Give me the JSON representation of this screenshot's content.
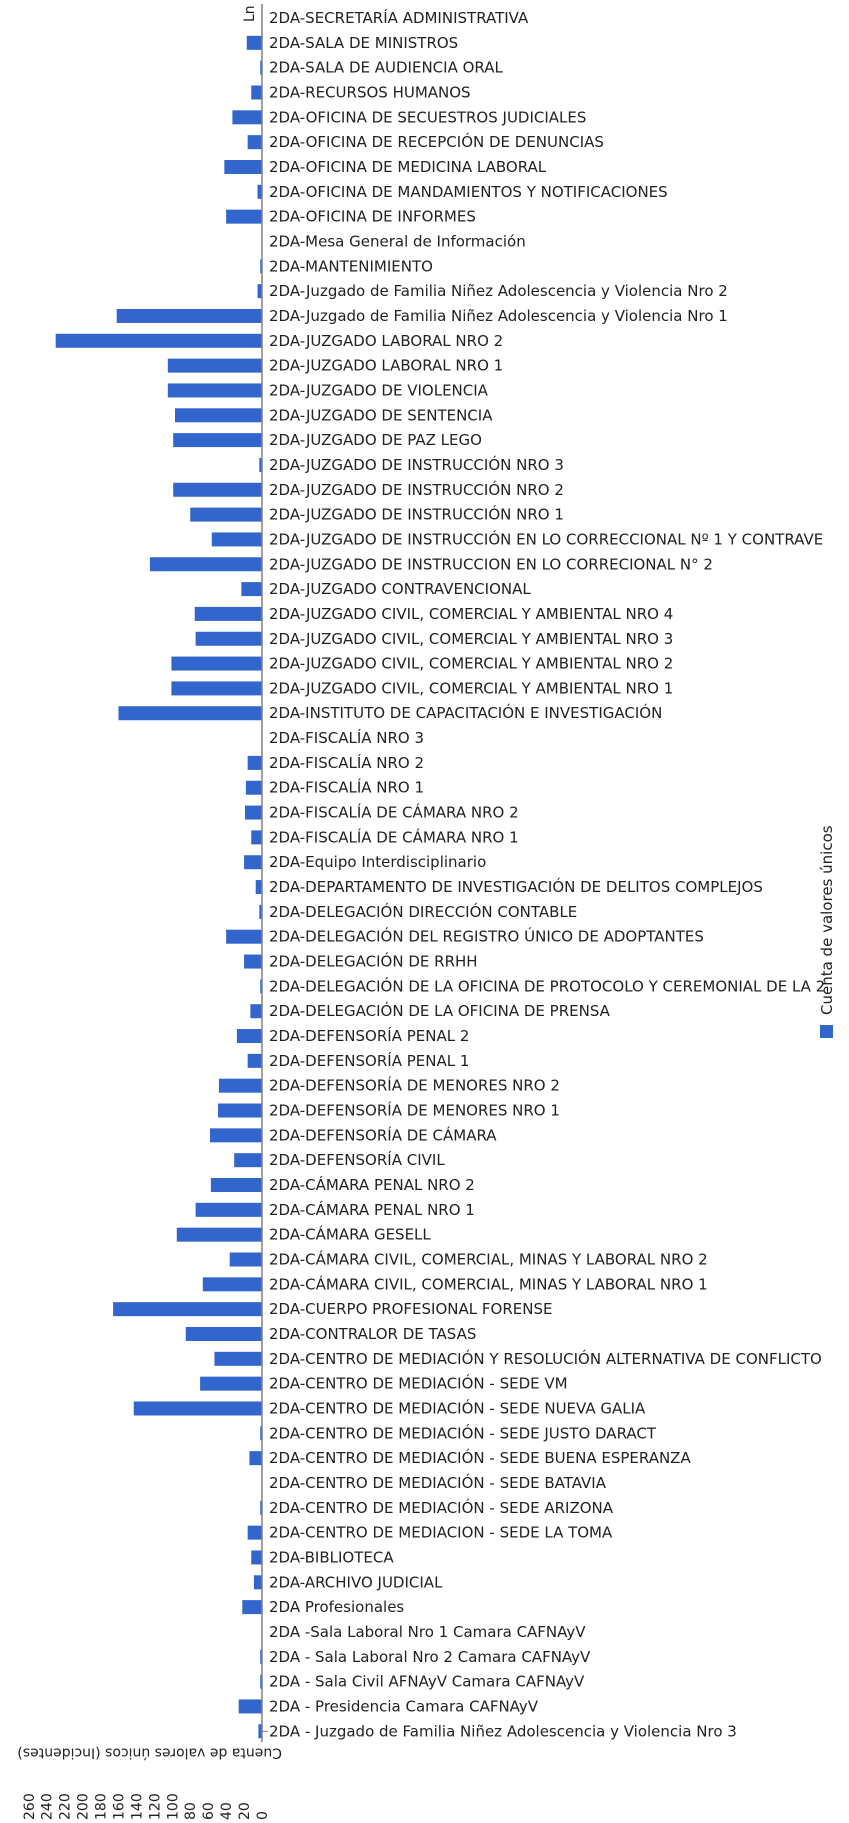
{
  "header_clip": "Ln",
  "colors": {
    "bar": "#3366cc",
    "axis": "#808080",
    "text": "#222222"
  },
  "chart_data": {
    "type": "bar",
    "orientation": "horizontal",
    "direction": "bars extend left from axis",
    "xlabel": "Cuenta de valores únicos (Incidentes)",
    "xlim": [
      0,
      260
    ],
    "xticks": [
      0,
      20,
      40,
      60,
      80,
      100,
      120,
      140,
      160,
      180,
      200,
      220,
      240,
      260
    ],
    "legend": {
      "position": "right",
      "entries": [
        "Cuenta de valores únicos"
      ]
    },
    "series": [
      {
        "name": "Cuenta de valores únicos",
        "values": [
          0,
          17,
          2,
          12,
          33,
          16,
          42,
          5,
          40,
          0,
          2,
          5,
          162,
          230,
          105,
          105,
          97,
          99,
          3,
          99,
          80,
          56,
          125,
          23,
          75,
          74,
          101,
          101,
          160,
          0,
          16,
          18,
          19,
          12,
          20,
          7,
          3,
          40,
          20,
          2,
          13,
          28,
          16,
          48,
          49,
          58,
          31,
          57,
          74,
          95,
          36,
          66,
          166,
          85,
          53,
          69,
          143,
          2,
          14,
          0,
          2,
          16,
          12,
          9,
          22,
          0,
          2,
          2,
          26,
          4
        ]
      }
    ],
    "categories": [
      "2DA-SECRETARÍA ADMINISTRATIVA",
      "2DA-SALA DE MINISTROS",
      "2DA-SALA DE AUDIENCIA ORAL",
      "2DA-RECURSOS HUMANOS",
      "2DA-OFICINA DE SECUESTROS JUDICIALES",
      "2DA-OFICINA DE RECEPCIÓN DE DENUNCIAS",
      "2DA-OFICINA DE MEDICINA LABORAL",
      "2DA-OFICINA DE MANDAMIENTOS Y NOTIFICACIONES",
      "2DA-OFICINA DE INFORMES",
      "2DA-Mesa General de Información",
      "2DA-MANTENIMIENTO",
      "2DA-Juzgado de Familia Niñez Adolescencia y Violencia Nro 2",
      "2DA-Juzgado de Familia Niñez Adolescencia y Violencia Nro 1",
      "2DA-JUZGADO LABORAL NRO 2",
      "2DA-JUZGADO LABORAL NRO 1",
      "2DA-JUZGADO DE VIOLENCIA",
      "2DA-JUZGADO DE SENTENCIA",
      "2DA-JUZGADO DE PAZ LEGO",
      "2DA-JUZGADO DE INSTRUCCIÓN NRO 3",
      "2DA-JUZGADO DE INSTRUCCIÓN NRO 2",
      "2DA-JUZGADO DE INSTRUCCIÓN NRO 1",
      "2DA-JUZGADO DE INSTRUCCIÓN EN LO CORRECCIONAL Nº 1 Y CONTRAVE",
      "2DA-JUZGADO DE INSTRUCCION EN LO CORRECIONAL N° 2",
      "2DA-JUZGADO CONTRAVENCIONAL",
      "2DA-JUZGADO CIVIL, COMERCIAL Y AMBIENTAL NRO 4",
      "2DA-JUZGADO CIVIL, COMERCIAL Y AMBIENTAL NRO 3",
      "2DA-JUZGADO CIVIL, COMERCIAL Y AMBIENTAL NRO 2",
      "2DA-JUZGADO CIVIL, COMERCIAL Y AMBIENTAL NRO 1",
      "2DA-INSTITUTO DE CAPACITACIÓN E INVESTIGACIÓN",
      "2DA-FISCALÍA NRO 3",
      "2DA-FISCALÍA NRO 2",
      "2DA-FISCALÍA NRO 1",
      "2DA-FISCALÍA DE CÁMARA NRO 2",
      "2DA-FISCALÍA DE CÁMARA NRO 1",
      "2DA-Equipo Interdisciplinario",
      "2DA-DEPARTAMENTO DE INVESTIGACIÓN DE DELITOS COMPLEJOS",
      "2DA-DELEGACIÓN DIRECCIÓN CONTABLE",
      "2DA-DELEGACIÓN DEL REGISTRO ÚNICO DE ADOPTANTES",
      "2DA-DELEGACIÓN DE RRHH",
      "2DA-DELEGACIÓN DE LA OFICINA DE PROTOCOLO Y CEREMONIAL DE LA 2",
      "2DA-DELEGACIÓN DE LA OFICINA DE PRENSA",
      "2DA-DEFENSORÍA PENAL 2",
      "2DA-DEFENSORÍA PENAL 1",
      "2DA-DEFENSORÍA DE MENORES NRO 2",
      "2DA-DEFENSORÍA DE MENORES NRO 1",
      "2DA-DEFENSORÍA DE CÁMARA",
      "2DA-DEFENSORÍA CIVIL",
      "2DA-CÁMARA PENAL NRO 2",
      "2DA-CÁMARA PENAL NRO 1",
      "2DA-CÁMARA GESELL",
      "2DA-CÁMARA CIVIL, COMERCIAL, MINAS Y LABORAL NRO 2",
      "2DA-CÁMARA CIVIL, COMERCIAL, MINAS Y LABORAL NRO 1",
      "2DA-CUERPO PROFESIONAL FORENSE",
      "2DA-CONTRALOR DE TASAS",
      "2DA-CENTRO DE MEDIACIÓN Y RESOLUCIÓN ALTERNATIVA DE CONFLICTO",
      "2DA-CENTRO DE MEDIACIÓN - SEDE VM",
      "2DA-CENTRO DE MEDIACIÓN - SEDE NUEVA GALIA",
      "2DA-CENTRO DE MEDIACIÓN - SEDE JUSTO DARACT",
      "2DA-CENTRO DE MEDIACIÓN - SEDE BUENA ESPERANZA",
      "2DA-CENTRO DE MEDIACIÓN - SEDE BATAVIA",
      "2DA-CENTRO DE MEDIACIÓN - SEDE ARIZONA",
      "2DA-CENTRO DE MEDIACION - SEDE LA TOMA",
      "2DA-BIBLIOTECA",
      "2DA-ARCHIVO JUDICIAL",
      "2DA Profesionales",
      "2DA -Sala Laboral Nro 1 Camara CAFNAyV",
      "2DA - Sala Laboral Nro 2 Camara CAFNAyV",
      "2DA - Sala Civil AFNAyV Camara CAFNAyV",
      "2DA - Presidencia Camara CAFNAyV",
      "2DA - Juzgado de Familia Niñez Adolescencia y Violencia Nro 3"
    ]
  }
}
